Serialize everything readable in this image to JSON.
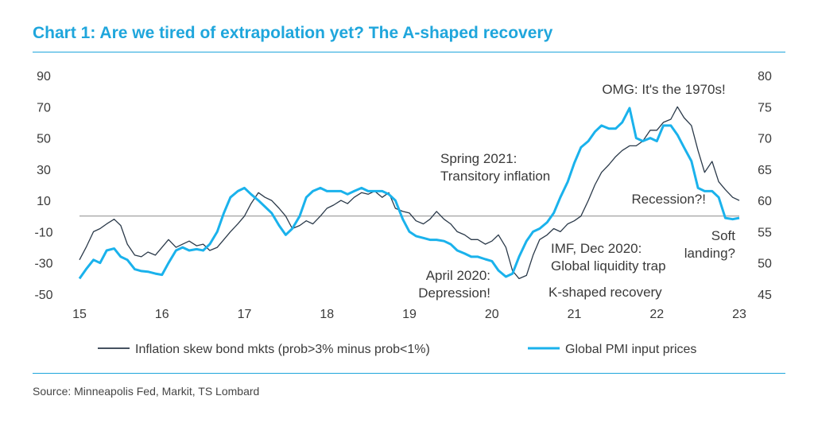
{
  "title": "Chart 1: Are we tired of extrapolation yet? The A-shaped recovery",
  "source": "Source: Minneapolis Fed, Markit, TS Lombard",
  "colors": {
    "accent": "#1fa6dc",
    "skew": "#2b3a4a",
    "pmi": "#1ab2ec",
    "zero_line": "#8c8c8c"
  },
  "chart_data": {
    "type": "line",
    "title": "Chart 1: Are we tired of extrapolation yet? The A-shaped recovery",
    "x_ticks": [
      "15",
      "16",
      "17",
      "18",
      "19",
      "20",
      "21",
      "22",
      "23"
    ],
    "xlim": [
      15,
      23
    ],
    "y_left": {
      "ylim": [
        -50,
        90
      ],
      "ticks": [
        "90",
        "70",
        "50",
        "30",
        "10",
        "-10",
        "-30",
        "-50"
      ]
    },
    "y_right": {
      "ylim": [
        45,
        80
      ],
      "ticks": [
        "80",
        "75",
        "70",
        "65",
        "60",
        "55",
        "50",
        "45"
      ]
    },
    "reference_line_left": 0,
    "legend_position": "bottom",
    "series": [
      {
        "name": "Inflation skew bond mkts (prob>3% minus prob<1%)",
        "axis": "left",
        "x": [
          15.0,
          15.08,
          15.17,
          15.25,
          15.33,
          15.42,
          15.5,
          15.58,
          15.67,
          15.75,
          15.83,
          15.92,
          16.0,
          16.08,
          16.17,
          16.25,
          16.33,
          16.42,
          16.5,
          16.58,
          16.67,
          16.75,
          16.83,
          16.92,
          17.0,
          17.08,
          17.17,
          17.25,
          17.33,
          17.42,
          17.5,
          17.58,
          17.67,
          17.75,
          17.83,
          17.92,
          18.0,
          18.08,
          18.17,
          18.25,
          18.33,
          18.42,
          18.5,
          18.58,
          18.67,
          18.75,
          18.83,
          18.92,
          19.0,
          19.08,
          19.17,
          19.25,
          19.33,
          19.42,
          19.5,
          19.58,
          19.67,
          19.75,
          19.83,
          19.92,
          20.0,
          20.08,
          20.17,
          20.25,
          20.33,
          20.42,
          20.5,
          20.58,
          20.67,
          20.75,
          20.83,
          20.92,
          21.0,
          21.08,
          21.17,
          21.25,
          21.33,
          21.42,
          21.5,
          21.58,
          21.67,
          21.75,
          21.83,
          21.92,
          22.0,
          22.08,
          22.17,
          22.25,
          22.33,
          22.42,
          22.5,
          22.58,
          22.67,
          22.75,
          22.83,
          22.92,
          23.0
        ],
        "values": [
          -28,
          -20,
          -10,
          -8,
          -5,
          -2,
          -6,
          -18,
          -25,
          -26,
          -23,
          -25,
          -20,
          -15,
          -20,
          -18,
          -16,
          -19,
          -18,
          -22,
          -20,
          -15,
          -10,
          -5,
          0,
          8,
          15,
          12,
          10,
          5,
          0,
          -8,
          -6,
          -3,
          -5,
          0,
          5,
          7,
          10,
          8,
          12,
          15,
          14,
          16,
          12,
          15,
          5,
          3,
          2,
          -3,
          -5,
          -2,
          3,
          -2,
          -5,
          -10,
          -12,
          -15,
          -15,
          -18,
          -16,
          -12,
          -20,
          -35,
          -40,
          -38,
          -25,
          -15,
          -12,
          -8,
          -10,
          -5,
          -3,
          0,
          10,
          20,
          28,
          33,
          38,
          42,
          45,
          45,
          48,
          55,
          55,
          60,
          62,
          70,
          63,
          58,
          42,
          28,
          35,
          22,
          17,
          12,
          10
        ]
      },
      {
        "name": "Global PMI input prices",
        "axis": "right",
        "x": [
          15.0,
          15.08,
          15.17,
          15.25,
          15.33,
          15.42,
          15.5,
          15.58,
          15.67,
          15.75,
          15.83,
          15.92,
          16.0,
          16.08,
          16.17,
          16.25,
          16.33,
          16.42,
          16.5,
          16.58,
          16.67,
          16.75,
          16.83,
          16.92,
          17.0,
          17.08,
          17.17,
          17.25,
          17.33,
          17.42,
          17.5,
          17.58,
          17.67,
          17.75,
          17.83,
          17.92,
          18.0,
          18.08,
          18.17,
          18.25,
          18.33,
          18.42,
          18.5,
          18.58,
          18.67,
          18.75,
          18.83,
          18.92,
          19.0,
          19.08,
          19.17,
          19.25,
          19.33,
          19.42,
          19.5,
          19.58,
          19.67,
          19.75,
          19.83,
          19.92,
          20.0,
          20.08,
          20.17,
          20.25,
          20.33,
          20.42,
          20.5,
          20.58,
          20.67,
          20.75,
          20.83,
          20.92,
          21.0,
          21.08,
          21.17,
          21.25,
          21.33,
          21.42,
          21.5,
          21.58,
          21.67,
          21.75,
          21.83,
          21.92,
          22.0,
          22.08,
          22.17,
          22.25,
          22.33,
          22.42,
          22.5,
          22.58,
          22.67,
          22.75,
          22.83,
          22.92,
          23.0
        ],
        "values": [
          47.5,
          49,
          50.5,
          50,
          52,
          52.3,
          51,
          50.5,
          49,
          48.7,
          48.6,
          48.3,
          48.1,
          50,
          52,
          52.5,
          52,
          52.2,
          52,
          53,
          55,
          58,
          60.5,
          61.5,
          62,
          61,
          60,
          59,
          58,
          56,
          54.5,
          55.5,
          57.5,
          60.5,
          61.5,
          62,
          61.5,
          61.5,
          61.5,
          61,
          61.5,
          62,
          61.5,
          61.5,
          61.5,
          61,
          60,
          57,
          55,
          54.3,
          54,
          53.7,
          53.7,
          53.5,
          53,
          52,
          51.5,
          51,
          51,
          50.6,
          50.3,
          48.8,
          47.8,
          48.3,
          51,
          53.5,
          55,
          55.5,
          56.5,
          58,
          60.5,
          63,
          66,
          68.5,
          69.5,
          71,
          72,
          71.5,
          71.5,
          72.5,
          74.8,
          70,
          69.5,
          70,
          69.5,
          72,
          72,
          70.5,
          68.5,
          66.3,
          62,
          61.5,
          61.5,
          60.5,
          57.2,
          57,
          57.2
        ]
      }
    ],
    "annotations": [
      {
        "lines": [
          "OMG: It's the 1970s!"
        ]
      },
      {
        "lines": [
          "Spring 2021:",
          "Transitory inflation"
        ]
      },
      {
        "lines": [
          "Recession?!"
        ]
      },
      {
        "lines": [
          "Soft",
          "landing?"
        ]
      },
      {
        "lines": [
          "IMF, Dec 2020:",
          "Global liquidity trap"
        ]
      },
      {
        "lines": [
          "April 2020:",
          "Depression!"
        ]
      },
      {
        "lines": [
          "K-shaped recovery"
        ]
      }
    ]
  }
}
